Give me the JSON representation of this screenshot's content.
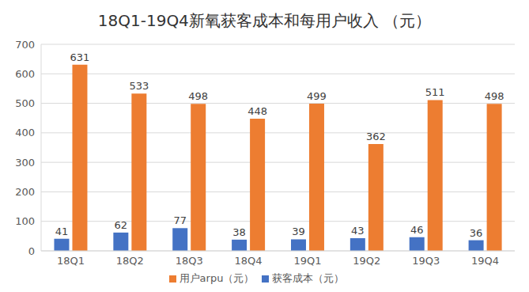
{
  "chart_data": {
    "type": "bar",
    "title": "18Q1-19Q4新氧获客成本和每用户收入 （元）",
    "categories": [
      "18Q1",
      "18Q2",
      "18Q3",
      "18Q4",
      "19Q1",
      "19Q2",
      "19Q3",
      "19Q4"
    ],
    "series": [
      {
        "name": "获客成本（元）",
        "color": "#4472c4",
        "values": [
          41,
          62,
          77,
          38,
          39,
          43,
          46,
          36
        ]
      },
      {
        "name": "用户arpu（元）",
        "color": "#ed7d31",
        "values": [
          631,
          533,
          498,
          448,
          499,
          362,
          511,
          498
        ]
      }
    ],
    "ylim": [
      0,
      700
    ],
    "yticks": [
      0,
      100,
      200,
      300,
      400,
      500,
      600,
      700
    ],
    "grid": true,
    "legend": "bottom",
    "data_labels": true
  }
}
